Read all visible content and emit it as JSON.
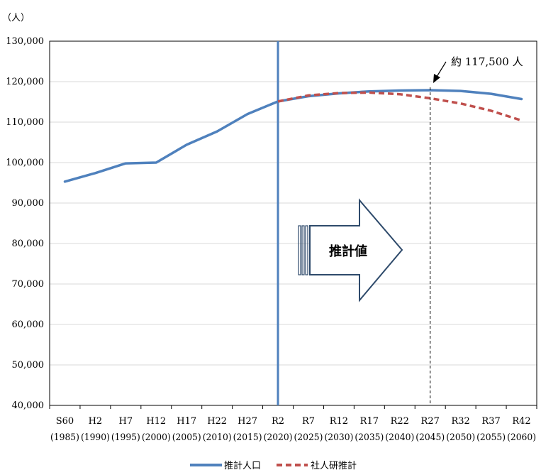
{
  "chart_data": {
    "type": "line",
    "yunit": "（人）",
    "ylim": [
      40000,
      130000
    ],
    "ytick_labels": [
      "40,000",
      "50,000",
      "60,000",
      "70,000",
      "80,000",
      "90,000",
      "100,000",
      "110,000",
      "120,000",
      "130,000"
    ],
    "yticks": [
      40000,
      50000,
      60000,
      70000,
      80000,
      90000,
      100000,
      110000,
      120000,
      130000
    ],
    "grid": true,
    "categories": [
      "S60",
      "H2",
      "H7",
      "H12",
      "H17",
      "H22",
      "H27",
      "R2",
      "R7",
      "R12",
      "R17",
      "R22",
      "R27",
      "R32",
      "R37",
      "R42"
    ],
    "category_years": [
      "(1985)",
      "(1990)",
      "(1995)",
      "(2000)",
      "(2005)",
      "(2010)",
      "(2015)",
      "(2020)",
      "(2025)",
      "(2030)",
      "(2035)",
      "(2040)",
      "(2045)",
      "(2050)",
      "(2055)",
      "(2060)"
    ],
    "series": [
      {
        "name": "推計人口",
        "color": "#4f81bd",
        "style": "solid",
        "values": [
          95300,
          97400,
          99800,
          100000,
          104400,
          107700,
          112000,
          115100,
          116400,
          117100,
          117600,
          117800,
          117900,
          117700,
          117000,
          115700
        ]
      },
      {
        "name": "社人研推計",
        "color": "#c0504d",
        "style": "dashed",
        "values": [
          null,
          null,
          null,
          null,
          null,
          null,
          null,
          115100,
          116600,
          117200,
          117300,
          116900,
          115900,
          114600,
          112800,
          110400
        ]
      }
    ],
    "annotations": {
      "projection_label": "推計値",
      "peak_label": "約 117,500 人",
      "projection_start": "R2",
      "peak_marker": "R27"
    },
    "legend_position": "bottom"
  }
}
